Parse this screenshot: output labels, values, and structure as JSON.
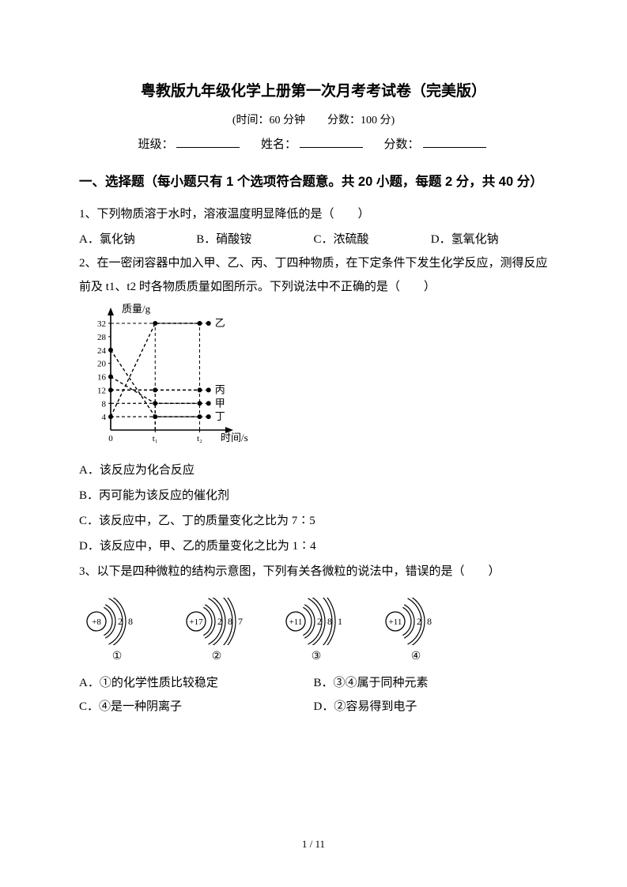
{
  "title": "粤教版九年级化学上册第一次月考考试卷（完美版）",
  "subtitle": "(时间：60 分钟　　分数：100 分)",
  "info": {
    "class_label": "班级：",
    "name_label": "姓名：",
    "score_label": "分数："
  },
  "section1_header": "一、选择题（每小题只有 1 个选项符合题意。共 20 小题，每题 2 分，共 40 分）",
  "q1": {
    "text": "1、下列物质溶于水时，溶液温度明显降低的是（　　）",
    "A": "A．氯化钠",
    "B": "B．硝酸铵",
    "C": "C．浓硫酸",
    "D": "D．氢氧化钠"
  },
  "q2": {
    "text": "2、在一密闭容器中加入甲、乙、丙、丁四种物质，在下定条件下发生化学反应，测得反应前及 t1、t2 时各物质质量如图所示。下列说法中不正确的是（　　）",
    "chart": {
      "type": "line",
      "y_label": "质量/g",
      "x_label": "时间/s",
      "x_ticks": [
        "0",
        "t₁",
        "t₂"
      ],
      "y_ticks": [
        4,
        8,
        12,
        16,
        20,
        24,
        28,
        32
      ],
      "series": {
        "甲": {
          "label": "甲",
          "points": [
            [
              0,
              16
            ],
            [
              1,
              8
            ],
            [
              2,
              8
            ]
          ]
        },
        "乙": {
          "label": "乙",
          "points": [
            [
              0,
              4
            ],
            [
              1,
              32
            ],
            [
              2,
              32
            ]
          ]
        },
        "丁": {
          "label": "丁",
          "points": [
            [
              0,
              24
            ],
            [
              1,
              4
            ],
            [
              2,
              4
            ]
          ]
        },
        "丙": {
          "label": "丙",
          "points": [
            [
              0,
              12
            ],
            [
              1,
              12
            ],
            [
              2,
              12
            ]
          ]
        }
      },
      "axis_color": "#000000",
      "line_color": "#000000",
      "dash": "4,3",
      "marker_radius": 3
    },
    "A": "A．该反应为化合反应",
    "B": "B．丙可能为该反应的催化剂",
    "C": "C．该反应中，乙、丁的质量变化之比为 7∶5",
    "D": "D．该反应中，甲、乙的质量变化之比为 1∶4"
  },
  "q3": {
    "text": "3、以下是四种微粒的结构示意图，下列有关各微粒的说法中，错误的是（　　）",
    "atoms": [
      {
        "nucleus": "+8",
        "shells": [
          "2",
          "8"
        ],
        "label": "①"
      },
      {
        "nucleus": "+17",
        "shells": [
          "2",
          "8",
          "7"
        ],
        "label": "②"
      },
      {
        "nucleus": "+11",
        "shells": [
          "2",
          "8",
          "1"
        ],
        "label": "③"
      },
      {
        "nucleus": "+11",
        "shells": [
          "2",
          "8"
        ],
        "label": "④"
      }
    ],
    "A": "A．①的化学性质比较稳定",
    "B": "B．③④属于同种元素",
    "C": "C．④是一种阴离子",
    "D": "D．②容易得到电子"
  },
  "page_num": "1 / 11",
  "colors": {
    "text": "#000000",
    "bg": "#ffffff"
  }
}
